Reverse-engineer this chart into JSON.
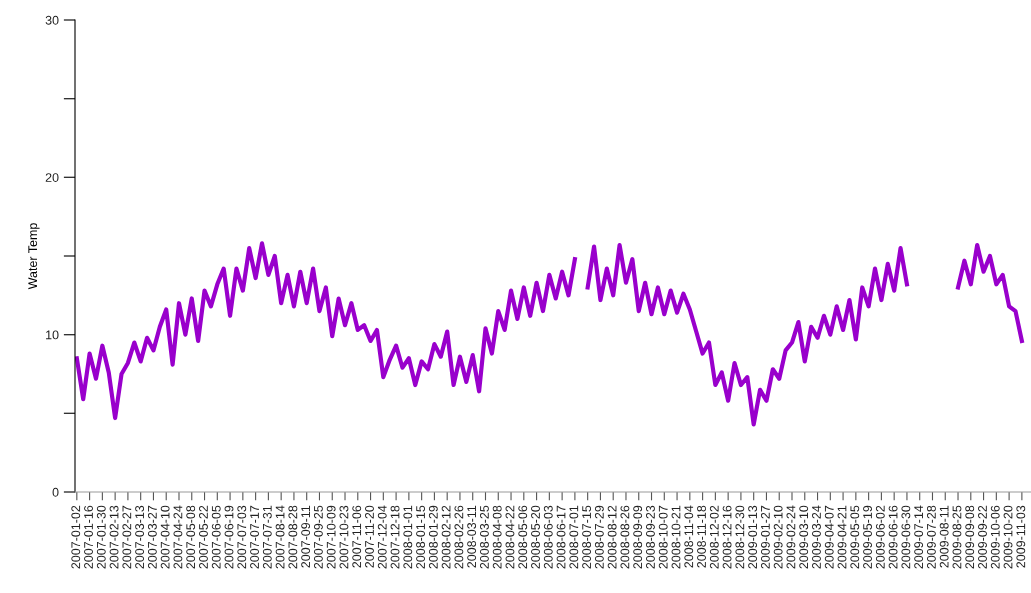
{
  "chart_data": {
    "type": "line",
    "ylabel": "Water Temp",
    "xlim": [
      "2006-12-31",
      "2009-11-13"
    ],
    "ylim": [
      0,
      30
    ],
    "yticks": [
      0,
      {
        "value": 5,
        "label": null
      },
      10,
      {
        "value": 15,
        "label": null
      },
      20,
      {
        "value": 25,
        "label": null
      },
      30
    ],
    "xticks": [
      "2007-01-02",
      "2007-01-16",
      "2007-01-30",
      "2007-02-13",
      "2007-02-27",
      "2007-03-13",
      "2007-03-27",
      "2007-04-10",
      "2007-04-24",
      "2007-05-08",
      "2007-05-22",
      "2007-06-05",
      "2007-06-19",
      "2007-07-03",
      "2007-07-17",
      "2007-07-31",
      "2007-08-14",
      "2007-08-28",
      "2007-09-11",
      "2007-09-25",
      "2007-10-09",
      "2007-10-23",
      "2007-11-06",
      "2007-11-20",
      "2007-12-04",
      "2007-12-18",
      "2008-01-01",
      "2008-01-15",
      "2008-01-29",
      "2008-02-12",
      "2008-02-26",
      "2008-03-11",
      "2008-03-25",
      "2008-04-08",
      "2008-04-22",
      "2008-05-06",
      "2008-05-20",
      "2008-06-03",
      "2008-06-17",
      "2008-07-01",
      "2008-07-15",
      "2008-07-29",
      "2008-08-12",
      "2008-08-26",
      "2008-09-09",
      "2008-09-23",
      "2008-10-07",
      "2008-10-21",
      "2008-11-04",
      "2008-11-18",
      "2008-12-02",
      "2008-12-16",
      "2008-12-30",
      "2009-01-13",
      "2009-01-27",
      "2009-02-10",
      "2009-02-24",
      "2009-03-10",
      "2009-03-24",
      "2009-04-07",
      "2009-04-21",
      "2009-05-05",
      "2009-05-19",
      "2009-06-02",
      "2009-06-16",
      "2009-06-30",
      "2009-07-14",
      "2009-07-28",
      "2009-08-11",
      "2009-08-25",
      "2009-09-08",
      "2009-09-22",
      "2009-10-06",
      "2009-10-20",
      "2009-11-03"
    ],
    "grid": false,
    "marker": "none",
    "line_style": "solid",
    "series": [
      {
        "color": "#9900cc",
        "x": [
          "2007-01-02",
          "2007-01-09",
          "2007-01-16",
          "2007-01-23",
          "2007-01-30",
          "2007-02-06",
          "2007-02-13",
          "2007-02-20",
          "2007-02-27",
          "2007-03-06",
          "2007-03-13",
          "2007-03-20",
          "2007-03-27",
          "2007-04-03",
          "2007-04-10",
          "2007-04-17",
          "2007-04-24",
          "2007-05-01",
          "2007-05-08",
          "2007-05-15",
          "2007-05-22",
          "2007-05-29",
          "2007-06-05",
          "2007-06-12",
          "2007-06-19",
          "2007-06-26",
          "2007-07-03",
          "2007-07-10",
          "2007-07-17",
          "2007-07-24",
          "2007-07-31",
          "2007-08-07",
          "2007-08-14",
          "2007-08-21",
          "2007-08-28",
          "2007-09-04",
          "2007-09-11",
          "2007-09-18",
          "2007-09-25",
          "2007-10-02",
          "2007-10-09",
          "2007-10-16",
          "2007-10-23",
          "2007-10-30",
          "2007-11-06",
          "2007-11-13",
          "2007-11-20",
          "2007-11-27",
          "2007-12-04",
          "2007-12-11",
          "2007-12-18",
          "2007-12-25",
          "2008-01-01",
          "2008-01-08",
          "2008-01-15",
          "2008-01-22",
          "2008-01-29",
          "2008-02-05",
          "2008-02-12",
          "2008-02-19",
          "2008-02-26",
          "2008-03-04",
          "2008-03-11",
          "2008-03-18",
          "2008-03-25",
          "2008-04-01",
          "2008-04-08",
          "2008-04-15",
          "2008-04-22",
          "2008-04-29",
          "2008-05-06",
          "2008-05-13",
          "2008-05-20",
          "2008-05-27",
          "2008-06-03",
          "2008-06-10",
          "2008-06-17",
          "2008-06-24",
          "2008-07-01",
          "2008-07-08",
          "2008-07-15",
          "2008-07-22",
          "2008-07-29",
          "2008-08-05",
          "2008-08-12",
          "2008-08-19",
          "2008-08-26",
          "2008-09-02",
          "2008-09-09",
          "2008-09-16",
          "2008-09-23",
          "2008-09-30",
          "2008-10-07",
          "2008-10-14",
          "2008-10-21",
          "2008-10-28",
          "2008-11-04",
          "2008-11-11",
          "2008-11-18",
          "2008-11-25",
          "2008-12-02",
          "2008-12-09",
          "2008-12-16",
          "2008-12-23",
          "2008-12-30",
          "2009-01-06",
          "2009-01-13",
          "2009-01-20",
          "2009-01-27",
          "2009-02-03",
          "2009-02-10",
          "2009-02-17",
          "2009-02-24",
          "2009-03-03",
          "2009-03-10",
          "2009-03-17",
          "2009-03-24",
          "2009-03-31",
          "2009-04-07",
          "2009-04-14",
          "2009-04-21",
          "2009-04-28",
          "2009-05-05",
          "2009-05-12",
          "2009-05-19",
          "2009-05-26",
          "2009-06-02",
          "2009-06-09",
          "2009-06-16",
          "2009-06-23",
          "2009-06-30",
          "2009-07-07",
          "2009-08-18",
          "2009-08-25",
          "2009-09-01",
          "2009-09-08",
          "2009-09-15",
          "2009-09-22",
          "2009-09-29",
          "2009-10-06",
          "2009-10-13",
          "2009-10-20",
          "2009-10-27",
          "2009-11-03"
        ],
        "values": [
          8.5,
          5.9,
          8.8,
          7.2,
          9.3,
          7.6,
          4.7,
          7.5,
          8.2,
          9.5,
          8.3,
          9.8,
          9.0,
          10.5,
          11.6,
          8.1,
          12.0,
          10.0,
          12.3,
          9.6,
          12.8,
          11.8,
          13.2,
          14.2,
          11.2,
          14.2,
          12.8,
          15.5,
          13.6,
          15.8,
          13.8,
          15.0,
          12.0,
          13.8,
          11.8,
          14.0,
          12.0,
          14.2,
          11.5,
          13.0,
          9.9,
          12.3,
          10.6,
          12.0,
          10.3,
          10.6,
          9.6,
          10.3,
          7.3,
          8.4,
          9.3,
          7.9,
          8.5,
          6.8,
          8.3,
          7.8,
          9.4,
          8.6,
          10.2,
          6.8,
          8.6,
          7.0,
          8.7,
          6.4,
          10.4,
          8.8,
          11.5,
          10.3,
          12.8,
          11.0,
          13.0,
          11.2,
          13.3,
          11.5,
          13.8,
          12.3,
          14.0,
          12.5,
          14.8,
          null,
          13.0,
          15.6,
          12.2,
          14.2,
          12.5,
          15.7,
          13.3,
          14.8,
          11.5,
          13.3,
          11.3,
          13.0,
          11.3,
          12.8,
          11.4,
          12.6,
          11.6,
          10.2,
          8.8,
          9.5,
          6.8,
          7.6,
          5.8,
          8.2,
          6.8,
          7.3,
          4.3,
          6.5,
          5.8,
          7.8,
          7.2,
          9.0,
          9.5,
          10.8,
          8.3,
          10.5,
          9.8,
          11.2,
          10.0,
          11.8,
          10.3,
          12.2,
          9.7,
          13.0,
          11.8,
          14.2,
          12.2,
          14.5,
          12.8,
          15.5,
          13.2,
          null,
          null,
          13.0,
          14.7,
          13.2,
          15.7,
          14.0,
          15.0,
          13.2,
          13.8,
          11.8,
          11.5,
          9.6
        ]
      }
    ]
  }
}
